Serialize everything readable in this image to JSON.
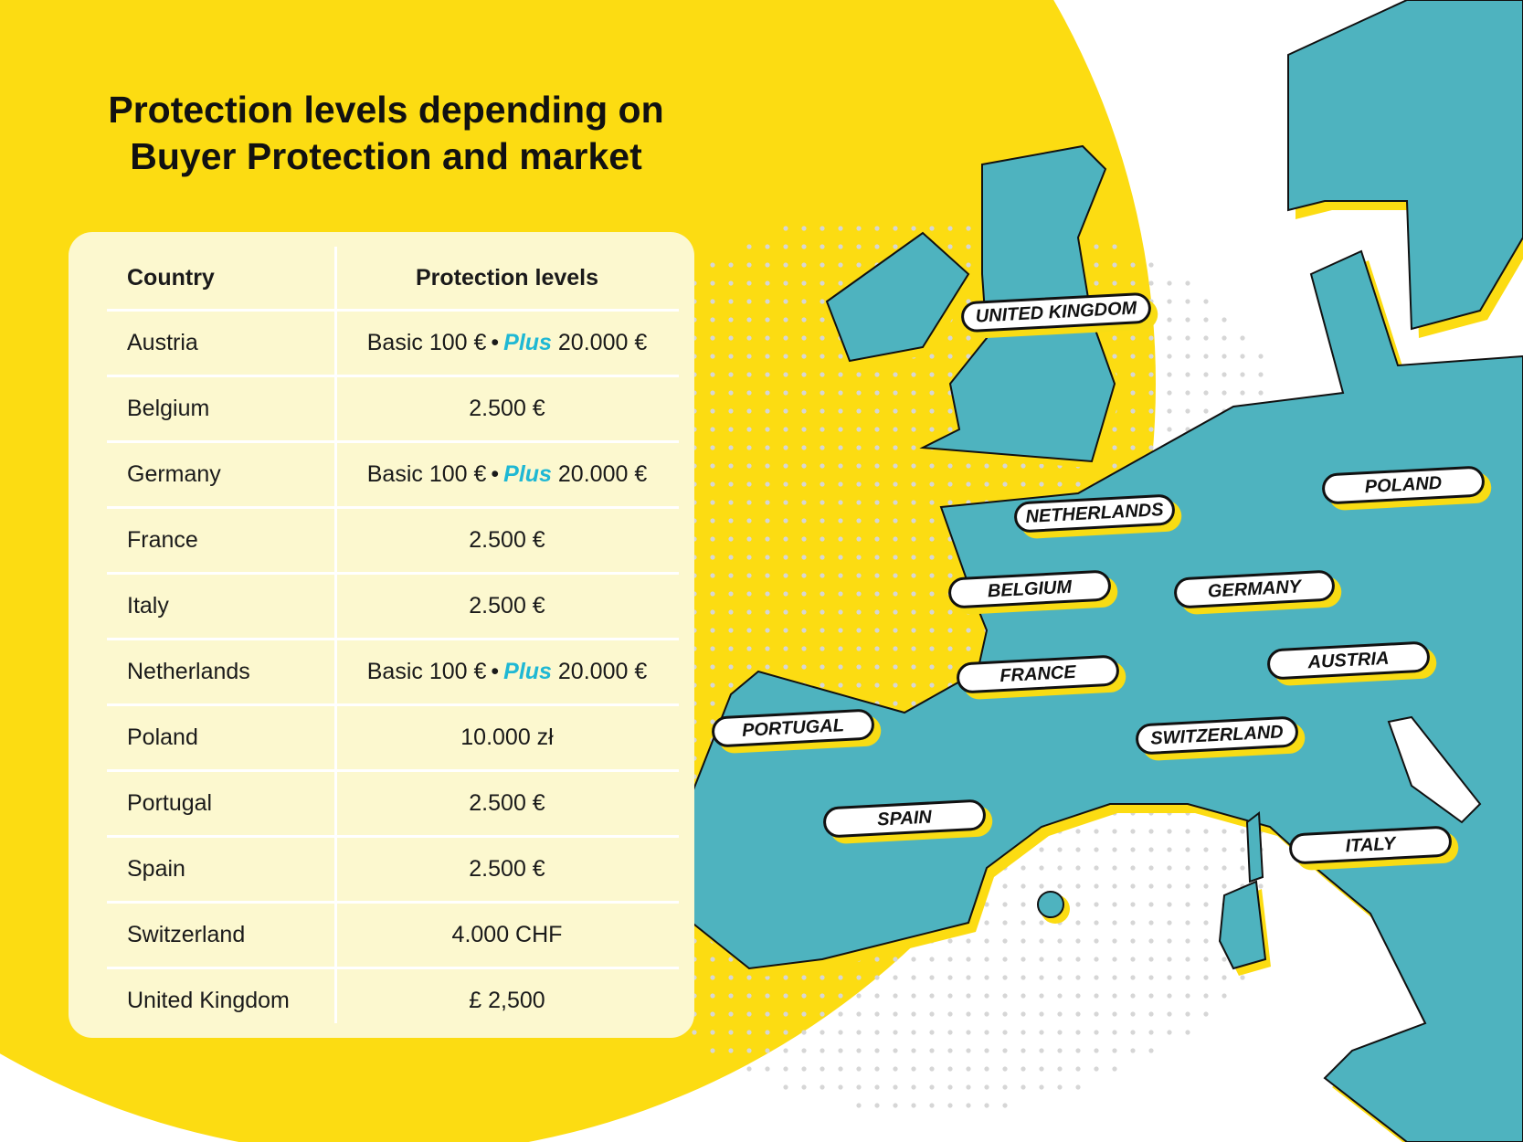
{
  "title": {
    "line1": "Protection levels depending on",
    "line2": "Buyer Protection and market"
  },
  "table": {
    "headers": {
      "country": "Country",
      "levels": "Protection levels"
    },
    "rows": [
      {
        "country": "Austria",
        "basic": "Basic 100 €",
        "sep": "•",
        "plus": "Plus",
        "plus_amount": "20.000 €"
      },
      {
        "country": "Belgium",
        "value": "2.500 €"
      },
      {
        "country": "Germany",
        "basic": "Basic 100 €",
        "sep": "•",
        "plus": "Plus",
        "plus_amount": "20.000 €"
      },
      {
        "country": "France",
        "value": "2.500 €"
      },
      {
        "country": "Italy",
        "value": "2.500 €"
      },
      {
        "country": "Netherlands",
        "basic": "Basic 100 €",
        "sep": "•",
        "plus": "Plus",
        "plus_amount": "20.000 €"
      },
      {
        "country": "Poland",
        "value": "10.000 zł"
      },
      {
        "country": "Portugal",
        "value": "2.500 €"
      },
      {
        "country": "Spain",
        "value": "2.500 €"
      },
      {
        "country": "Switzerland",
        "value": "4.000 CHF"
      },
      {
        "country": "United Kingdom",
        "value": "£ 2,500"
      }
    ]
  },
  "map_labels": {
    "united_kingdom": "UNITED KINGDOM",
    "poland": "POLAND",
    "netherlands": "NETHERLANDS",
    "belgium": "BELGIUM",
    "germany": "GERMANY",
    "france": "FRANCE",
    "austria": "AUSTRIA",
    "portugal": "PORTUGAL",
    "switzerland": "SWITZERLAND",
    "spain": "SPAIN",
    "italy": "ITALY"
  },
  "colors": {
    "yellow": "#fcdc12",
    "teal": "#4eb3bf",
    "plus_blue": "#1fb8d4",
    "card": "#fcf8cf"
  }
}
